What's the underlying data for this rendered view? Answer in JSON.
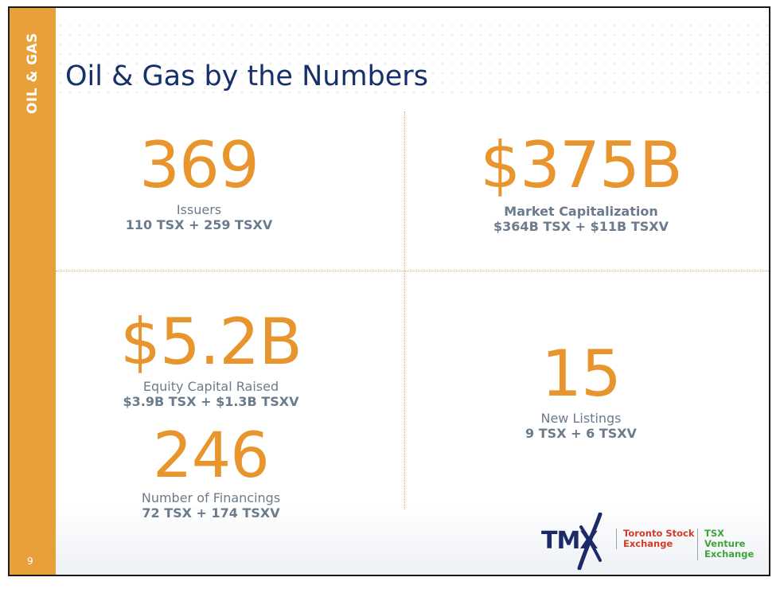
{
  "sidebar": {
    "section_label": "OIL & GAS",
    "page_number": "9"
  },
  "title": "Oil & Gas by the Numbers",
  "stats": {
    "issuers": {
      "value": "369",
      "label": "Issuers",
      "detail": "110 TSX + 259 TSXV"
    },
    "market_cap": {
      "value": "$375B",
      "label": "Market Capitalization",
      "detail": "$364B TSX + $11B TSXV"
    },
    "equity": {
      "value": "$5.2B",
      "label": "Equity Capital Raised",
      "detail": "$3.9B TSX + $1.3B TSXV"
    },
    "financings": {
      "value": "246",
      "label": "Number of Financings",
      "detail": "72 TSX + 174 TSXV"
    },
    "listings": {
      "value": "15",
      "label": "New Listings",
      "detail": "9 TSX + 6 TSXV"
    }
  },
  "logo": {
    "tmx": "TMX",
    "tsx_line1": "Toronto Stock",
    "tsx_line2": "Exchange",
    "tsxv_line1": "TSX Venture",
    "tsxv_line2": "Exchange"
  },
  "colors": {
    "accent": "#e8a13a",
    "value": "#e8952e",
    "title": "#16306a",
    "text": "#6b7b8c"
  }
}
